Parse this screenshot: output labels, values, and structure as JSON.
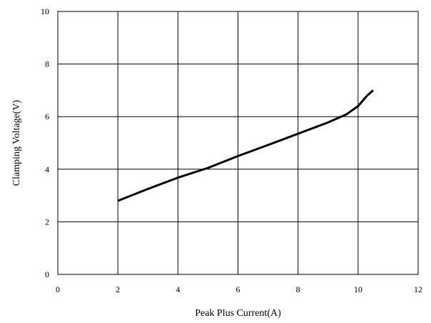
{
  "chart_data": {
    "type": "line",
    "title": "",
    "xlabel": "Peak Plus Current(A)",
    "ylabel": "Clamping Voltage(V)",
    "xlim": [
      0,
      12
    ],
    "ylim": [
      0,
      10
    ],
    "x_ticks": [
      0,
      2,
      4,
      6,
      8,
      10,
      12
    ],
    "y_ticks": [
      0,
      2,
      4,
      6,
      8,
      10
    ],
    "grid": true,
    "legend": "none",
    "series": [
      {
        "color": "#000000",
        "x": [
          2,
          3,
          4,
          5,
          6,
          7,
          8,
          9,
          9.6,
          10.0,
          10.3,
          10.5
        ],
        "y": [
          2.8,
          3.25,
          3.68,
          4.05,
          4.5,
          4.92,
          5.35,
          5.78,
          6.08,
          6.4,
          6.8,
          7.0
        ]
      }
    ]
  }
}
